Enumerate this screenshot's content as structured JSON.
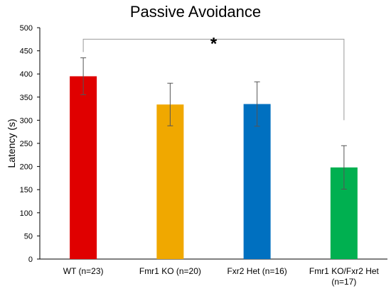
{
  "chart_data": {
    "type": "bar",
    "title": "Passive Avoidance",
    "ylabel": "Latency (s)",
    "xlabel": "",
    "ylim": [
      0,
      500
    ],
    "yticks": [
      0,
      50,
      100,
      150,
      200,
      250,
      300,
      350,
      400,
      450,
      500
    ],
    "categories": [
      [
        "WT (n=23)"
      ],
      [
        "Fmr1 KO (n=20)"
      ],
      [
        "Fxr2 Het (n=16)"
      ],
      [
        "Fmr1 KO/Fxr2 Het",
        "(n=17)"
      ]
    ],
    "values": [
      395,
      334,
      335,
      198
    ],
    "errors": [
      40,
      46,
      48,
      47
    ],
    "colors": [
      "#e00000",
      "#f0a800",
      "#0070c0",
      "#00b050"
    ],
    "grid": false,
    "significance": {
      "label": "*",
      "from_category": 0,
      "to_category": 3
    }
  }
}
